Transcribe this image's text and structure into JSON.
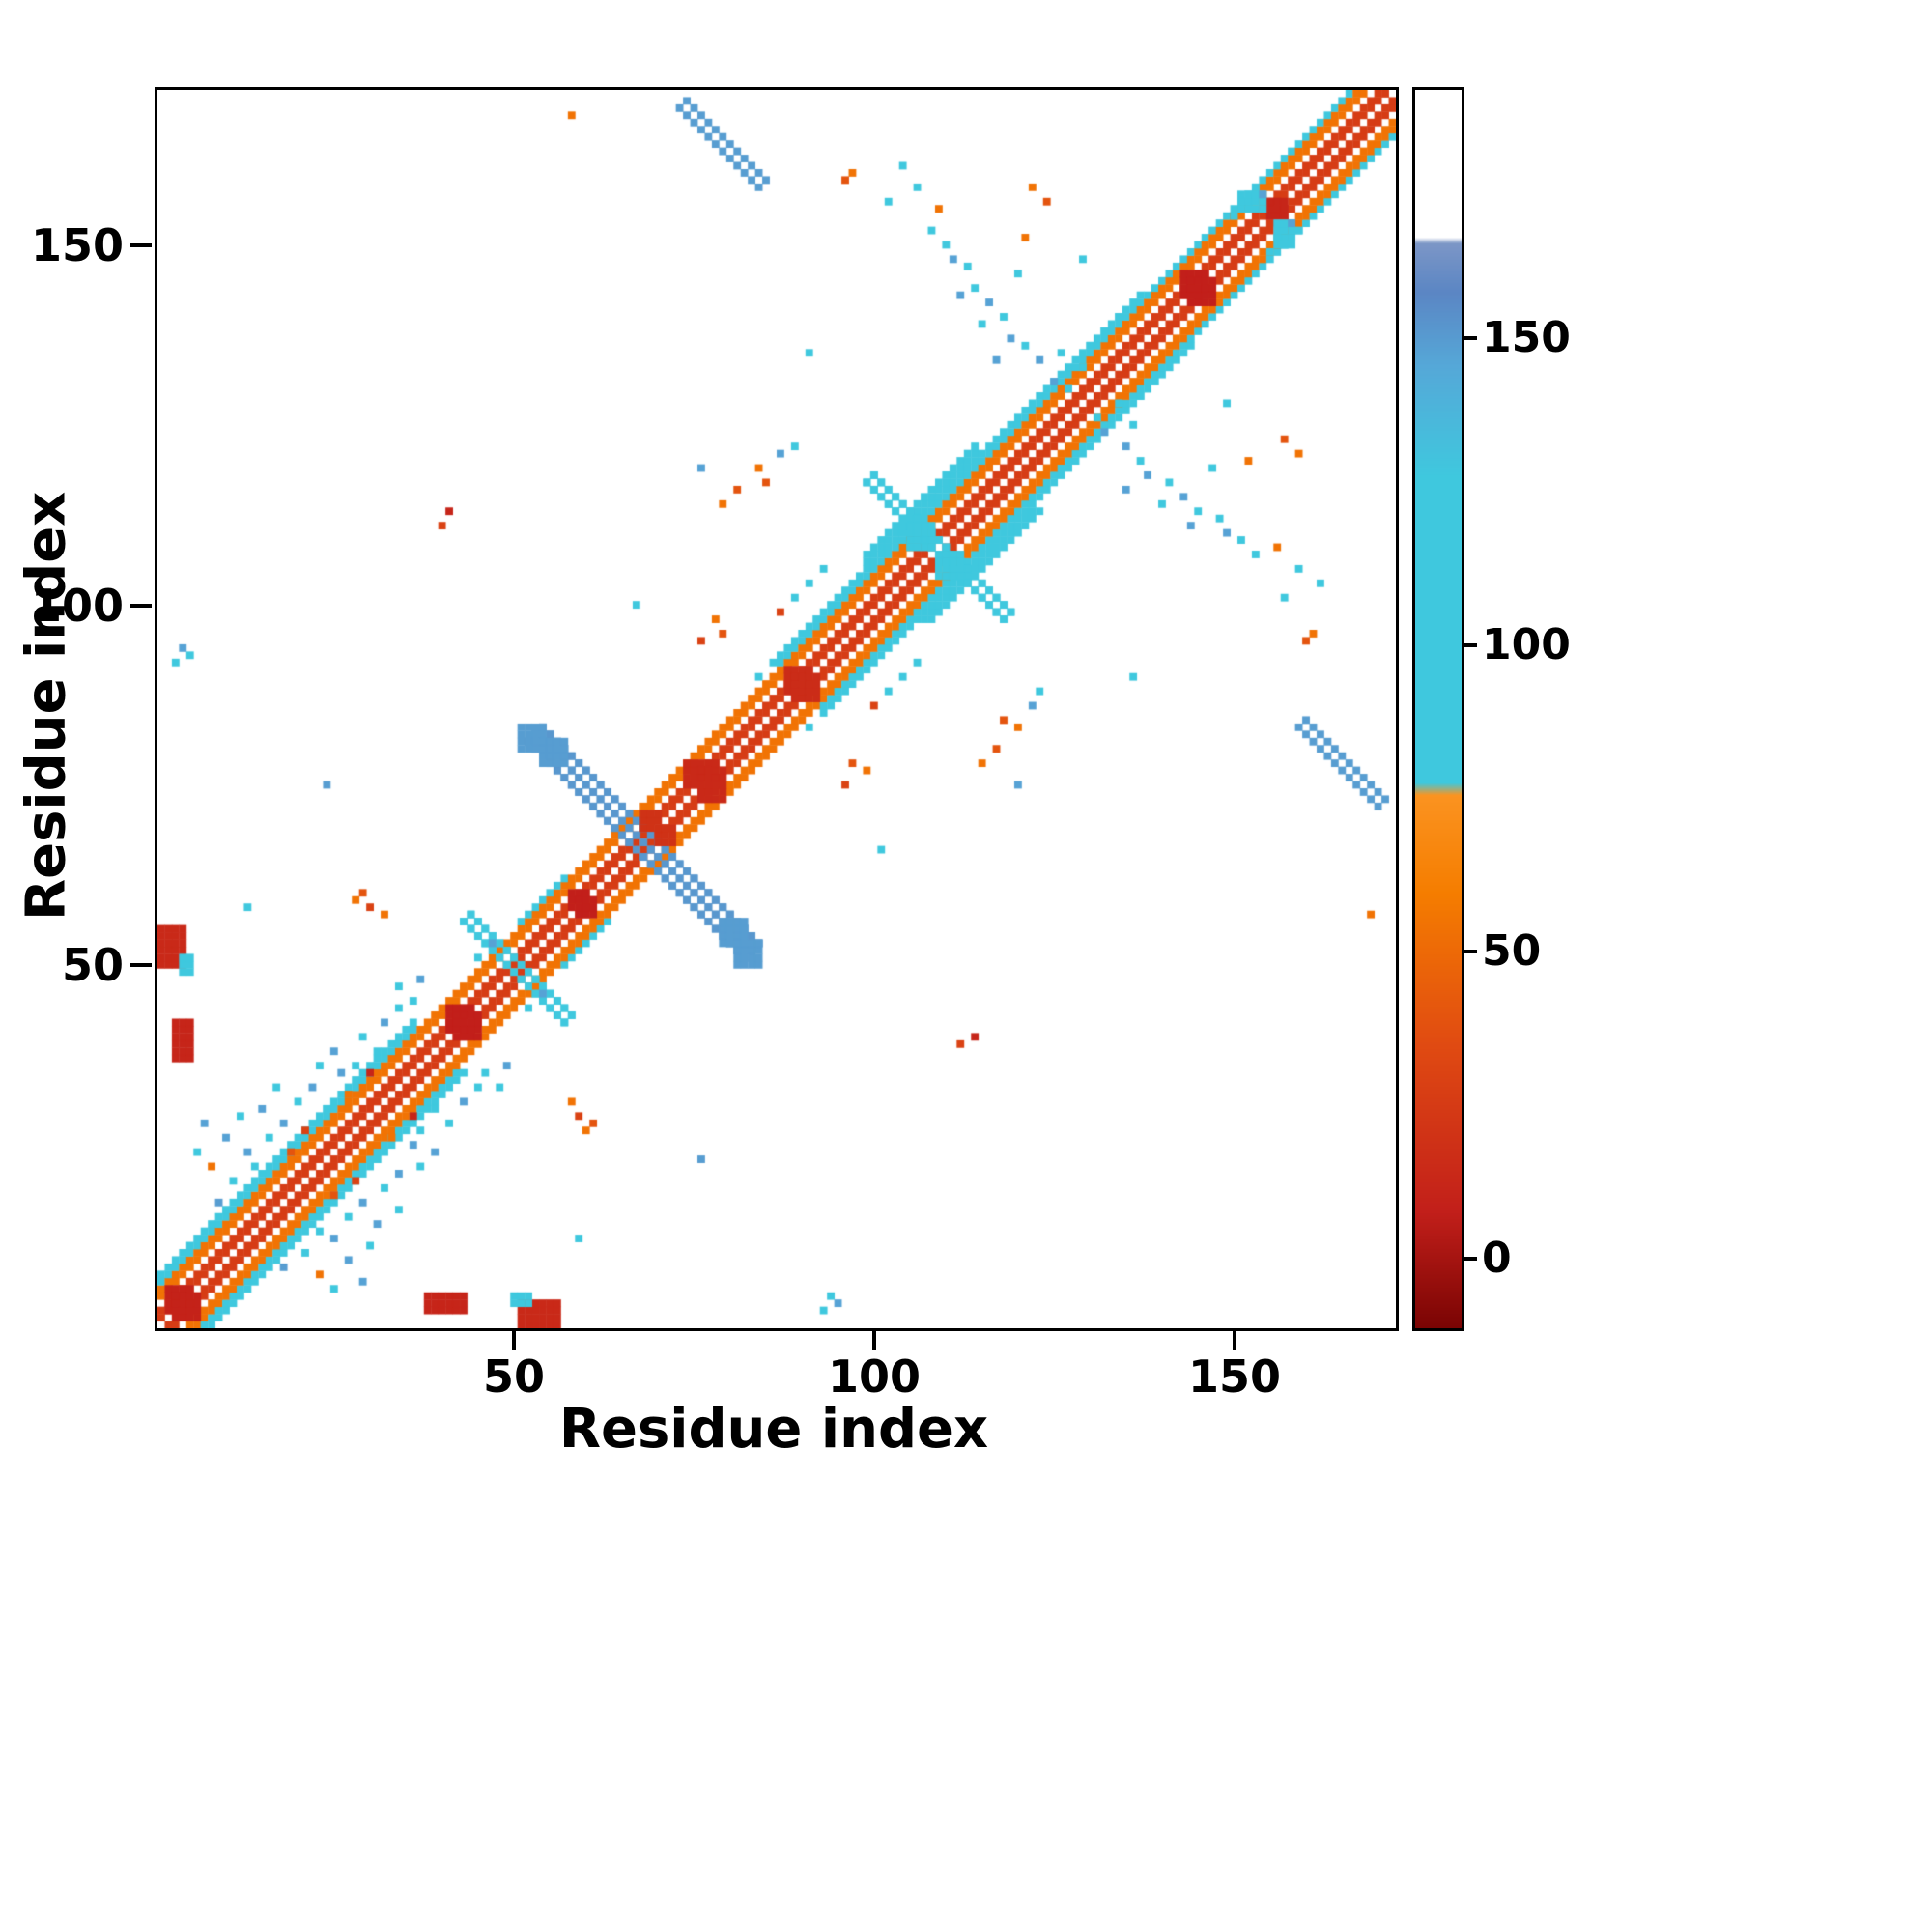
{
  "chart_data": {
    "type": "heatmap",
    "title": "",
    "xlabel": "Residue index",
    "ylabel": "Residue index",
    "x_range": [
      0,
      172
    ],
    "y_range": [
      0,
      172
    ],
    "x_ticks": [
      50,
      100,
      150
    ],
    "y_ticks": [
      50,
      100,
      150
    ],
    "grid": false,
    "symmetric": true,
    "background": "#ffffff",
    "colorbar": {
      "ticks": [
        0,
        50,
        100,
        150
      ],
      "range": [
        -11,
        191
      ],
      "stops": [
        [
          -11,
          "#7a0403"
        ],
        [
          8,
          "#c21f1a"
        ],
        [
          35,
          "#e04a12"
        ],
        [
          60,
          "#f57d00"
        ],
        [
          76,
          "#fb9320"
        ],
        [
          78,
          "#3fc8de"
        ],
        [
          128,
          "#3fc8de"
        ],
        [
          146,
          "#55a8d8"
        ],
        [
          158,
          "#5b86c4"
        ],
        [
          166,
          "#7c96c6"
        ],
        [
          167,
          "#ffffff"
        ],
        [
          191,
          "#ffffff"
        ]
      ]
    },
    "band_values": {
      "core": 26,
      "mid": 55,
      "fringe": 104,
      "white_stripe_offset": 3
    },
    "diagonal_segments": [
      {
        "from": 0,
        "to": 36,
        "half_width": 7
      },
      {
        "from": 36,
        "to": 50,
        "half_width": 5
      },
      {
        "from": 50,
        "to": 57,
        "half_width": 6
      },
      {
        "from": 57,
        "to": 86,
        "half_width": 5
      },
      {
        "from": 86,
        "to": 98,
        "half_width": 7
      },
      {
        "from": 98,
        "to": 114,
        "half_width": 9
      },
      {
        "from": 114,
        "to": 137,
        "half_width": 7
      },
      {
        "from": 137,
        "to": 172,
        "half_width": 6
      }
    ],
    "antidiagonal_features": [
      {
        "i": 51,
        "j": 81,
        "n": 31,
        "w": 3,
        "v": 152
      },
      {
        "i": 42,
        "j": 56,
        "n": 15,
        "w": 2,
        "v": 102
      },
      {
        "i": 98,
        "j": 117,
        "n": 20,
        "w": 2,
        "v": 104
      },
      {
        "i": 72,
        "j": 169,
        "n": 12,
        "w": 2,
        "v": 150
      }
    ],
    "blobs": [
      {
        "i": 50,
        "j": 80,
        "w": 4,
        "h": 4,
        "v": 150
      },
      {
        "i": 78,
        "j": 53,
        "w": 4,
        "h": 4,
        "v": 150
      },
      {
        "i": 40,
        "j": 41,
        "w": 4,
        "h": 4,
        "v": 8
      },
      {
        "i": 57,
        "j": 58,
        "w": 3,
        "h": 3,
        "v": 8
      },
      {
        "i": 67,
        "j": 69,
        "w": 3,
        "h": 3,
        "v": 20
      },
      {
        "i": 73,
        "j": 75,
        "w": 5,
        "h": 4,
        "v": 14
      },
      {
        "i": 87,
        "j": 88,
        "w": 4,
        "h": 4,
        "v": 16
      },
      {
        "i": 104,
        "j": 108,
        "w": 4,
        "h": 4,
        "v": 100
      },
      {
        "i": 142,
        "j": 143,
        "w": 4,
        "h": 4,
        "v": 8
      },
      {
        "i": 154,
        "j": 154,
        "w": 3,
        "h": 3,
        "v": 12
      },
      {
        "i": 1,
        "j": 2,
        "w": 4,
        "h": 4,
        "v": 10
      },
      {
        "i": 2,
        "j": 37,
        "w": 3,
        "h": 6,
        "v": 12
      },
      {
        "i": 50,
        "j": 0,
        "w": 6,
        "h": 4,
        "v": 14
      },
      {
        "i": 49,
        "j": 3,
        "w": 3,
        "h": 2,
        "v": 100
      },
      {
        "i": 150,
        "j": 155,
        "w": 4,
        "h": 3,
        "v": 102
      }
    ],
    "points": [
      [
        8,
        17,
        150
      ],
      [
        10,
        20,
        104
      ],
      [
        12,
        24,
        148
      ],
      [
        13,
        22,
        104
      ],
      [
        9,
        26,
        148
      ],
      [
        11,
        29,
        104
      ],
      [
        14,
        30,
        148
      ],
      [
        15,
        26,
        104
      ],
      [
        17,
        28,
        148
      ],
      [
        16,
        33,
        104
      ],
      [
        19,
        31,
        104
      ],
      [
        21,
        33,
        148
      ],
      [
        23,
        30,
        104
      ],
      [
        25,
        35,
        148
      ],
      [
        27,
        36,
        104
      ],
      [
        7,
        22,
        55
      ],
      [
        12,
        16,
        55
      ],
      [
        18,
        24,
        40
      ],
      [
        20,
        27,
        30
      ],
      [
        6,
        28,
        148
      ],
      [
        5,
        24,
        104
      ],
      [
        22,
        36,
        104
      ],
      [
        24,
        38,
        148
      ],
      [
        28,
        40,
        104
      ],
      [
        30,
        38,
        104
      ],
      [
        26,
        32,
        55
      ],
      [
        31,
        42,
        148
      ],
      [
        33,
        44,
        104
      ],
      [
        29,
        35,
        12
      ],
      [
        28,
        60,
        40
      ],
      [
        29,
        58,
        30
      ],
      [
        31,
        57,
        55
      ],
      [
        27,
        59,
        55
      ],
      [
        33,
        47,
        104
      ],
      [
        35,
        45,
        104
      ],
      [
        36,
        48,
        148
      ],
      [
        23,
        75,
        150
      ],
      [
        40,
        113,
        12
      ],
      [
        39,
        111,
        30
      ],
      [
        44,
        51,
        104
      ],
      [
        46,
        53,
        148
      ],
      [
        12,
        58,
        104
      ],
      [
        4,
        93,
        104
      ],
      [
        3,
        94,
        148
      ],
      [
        2,
        92,
        104
      ],
      [
        57,
        168,
        55
      ],
      [
        66,
        100,
        104
      ],
      [
        75,
        95,
        30
      ],
      [
        77,
        98,
        55
      ],
      [
        78,
        96,
        40
      ],
      [
        83,
        119,
        55
      ],
      [
        84,
        117,
        40
      ],
      [
        86,
        121,
        148
      ],
      [
        88,
        122,
        104
      ],
      [
        78,
        114,
        55
      ],
      [
        80,
        116,
        40
      ],
      [
        75,
        119,
        148
      ],
      [
        85,
        92,
        104
      ],
      [
        83,
        90,
        104
      ],
      [
        86,
        99,
        30
      ],
      [
        88,
        101,
        104
      ],
      [
        90,
        103,
        104
      ],
      [
        92,
        105,
        104
      ],
      [
        90,
        135,
        104
      ],
      [
        96,
        160,
        55
      ],
      [
        95,
        159,
        40
      ],
      [
        101,
        156,
        104
      ],
      [
        103,
        161,
        104
      ],
      [
        105,
        158,
        104
      ],
      [
        107,
        152,
        104
      ],
      [
        108,
        155,
        55
      ],
      [
        109,
        150,
        104
      ],
      [
        110,
        148,
        148
      ],
      [
        111,
        143,
        148
      ],
      [
        112,
        147,
        104
      ],
      [
        113,
        144,
        104
      ],
      [
        114,
        139,
        104
      ],
      [
        115,
        142,
        148
      ],
      [
        116,
        134,
        148
      ],
      [
        117,
        140,
        104
      ],
      [
        118,
        137,
        148
      ],
      [
        119,
        146,
        104
      ],
      [
        120,
        136,
        104
      ],
      [
        121,
        158,
        55
      ],
      [
        122,
        134,
        148
      ],
      [
        123,
        156,
        40
      ],
      [
        124,
        131,
        148
      ],
      [
        125,
        135,
        104
      ],
      [
        126,
        130,
        104
      ],
      [
        128,
        133,
        104
      ],
      [
        128,
        148,
        104
      ],
      [
        129,
        136,
        104
      ],
      [
        131,
        138,
        104
      ],
      [
        133,
        140,
        104
      ],
      [
        120,
        151,
        55
      ],
      [
        150,
        156,
        104
      ],
      [
        151,
        155,
        104
      ],
      [
        152,
        158,
        104
      ],
      [
        153,
        157,
        148
      ],
      [
        149,
        154,
        104
      ]
    ]
  }
}
